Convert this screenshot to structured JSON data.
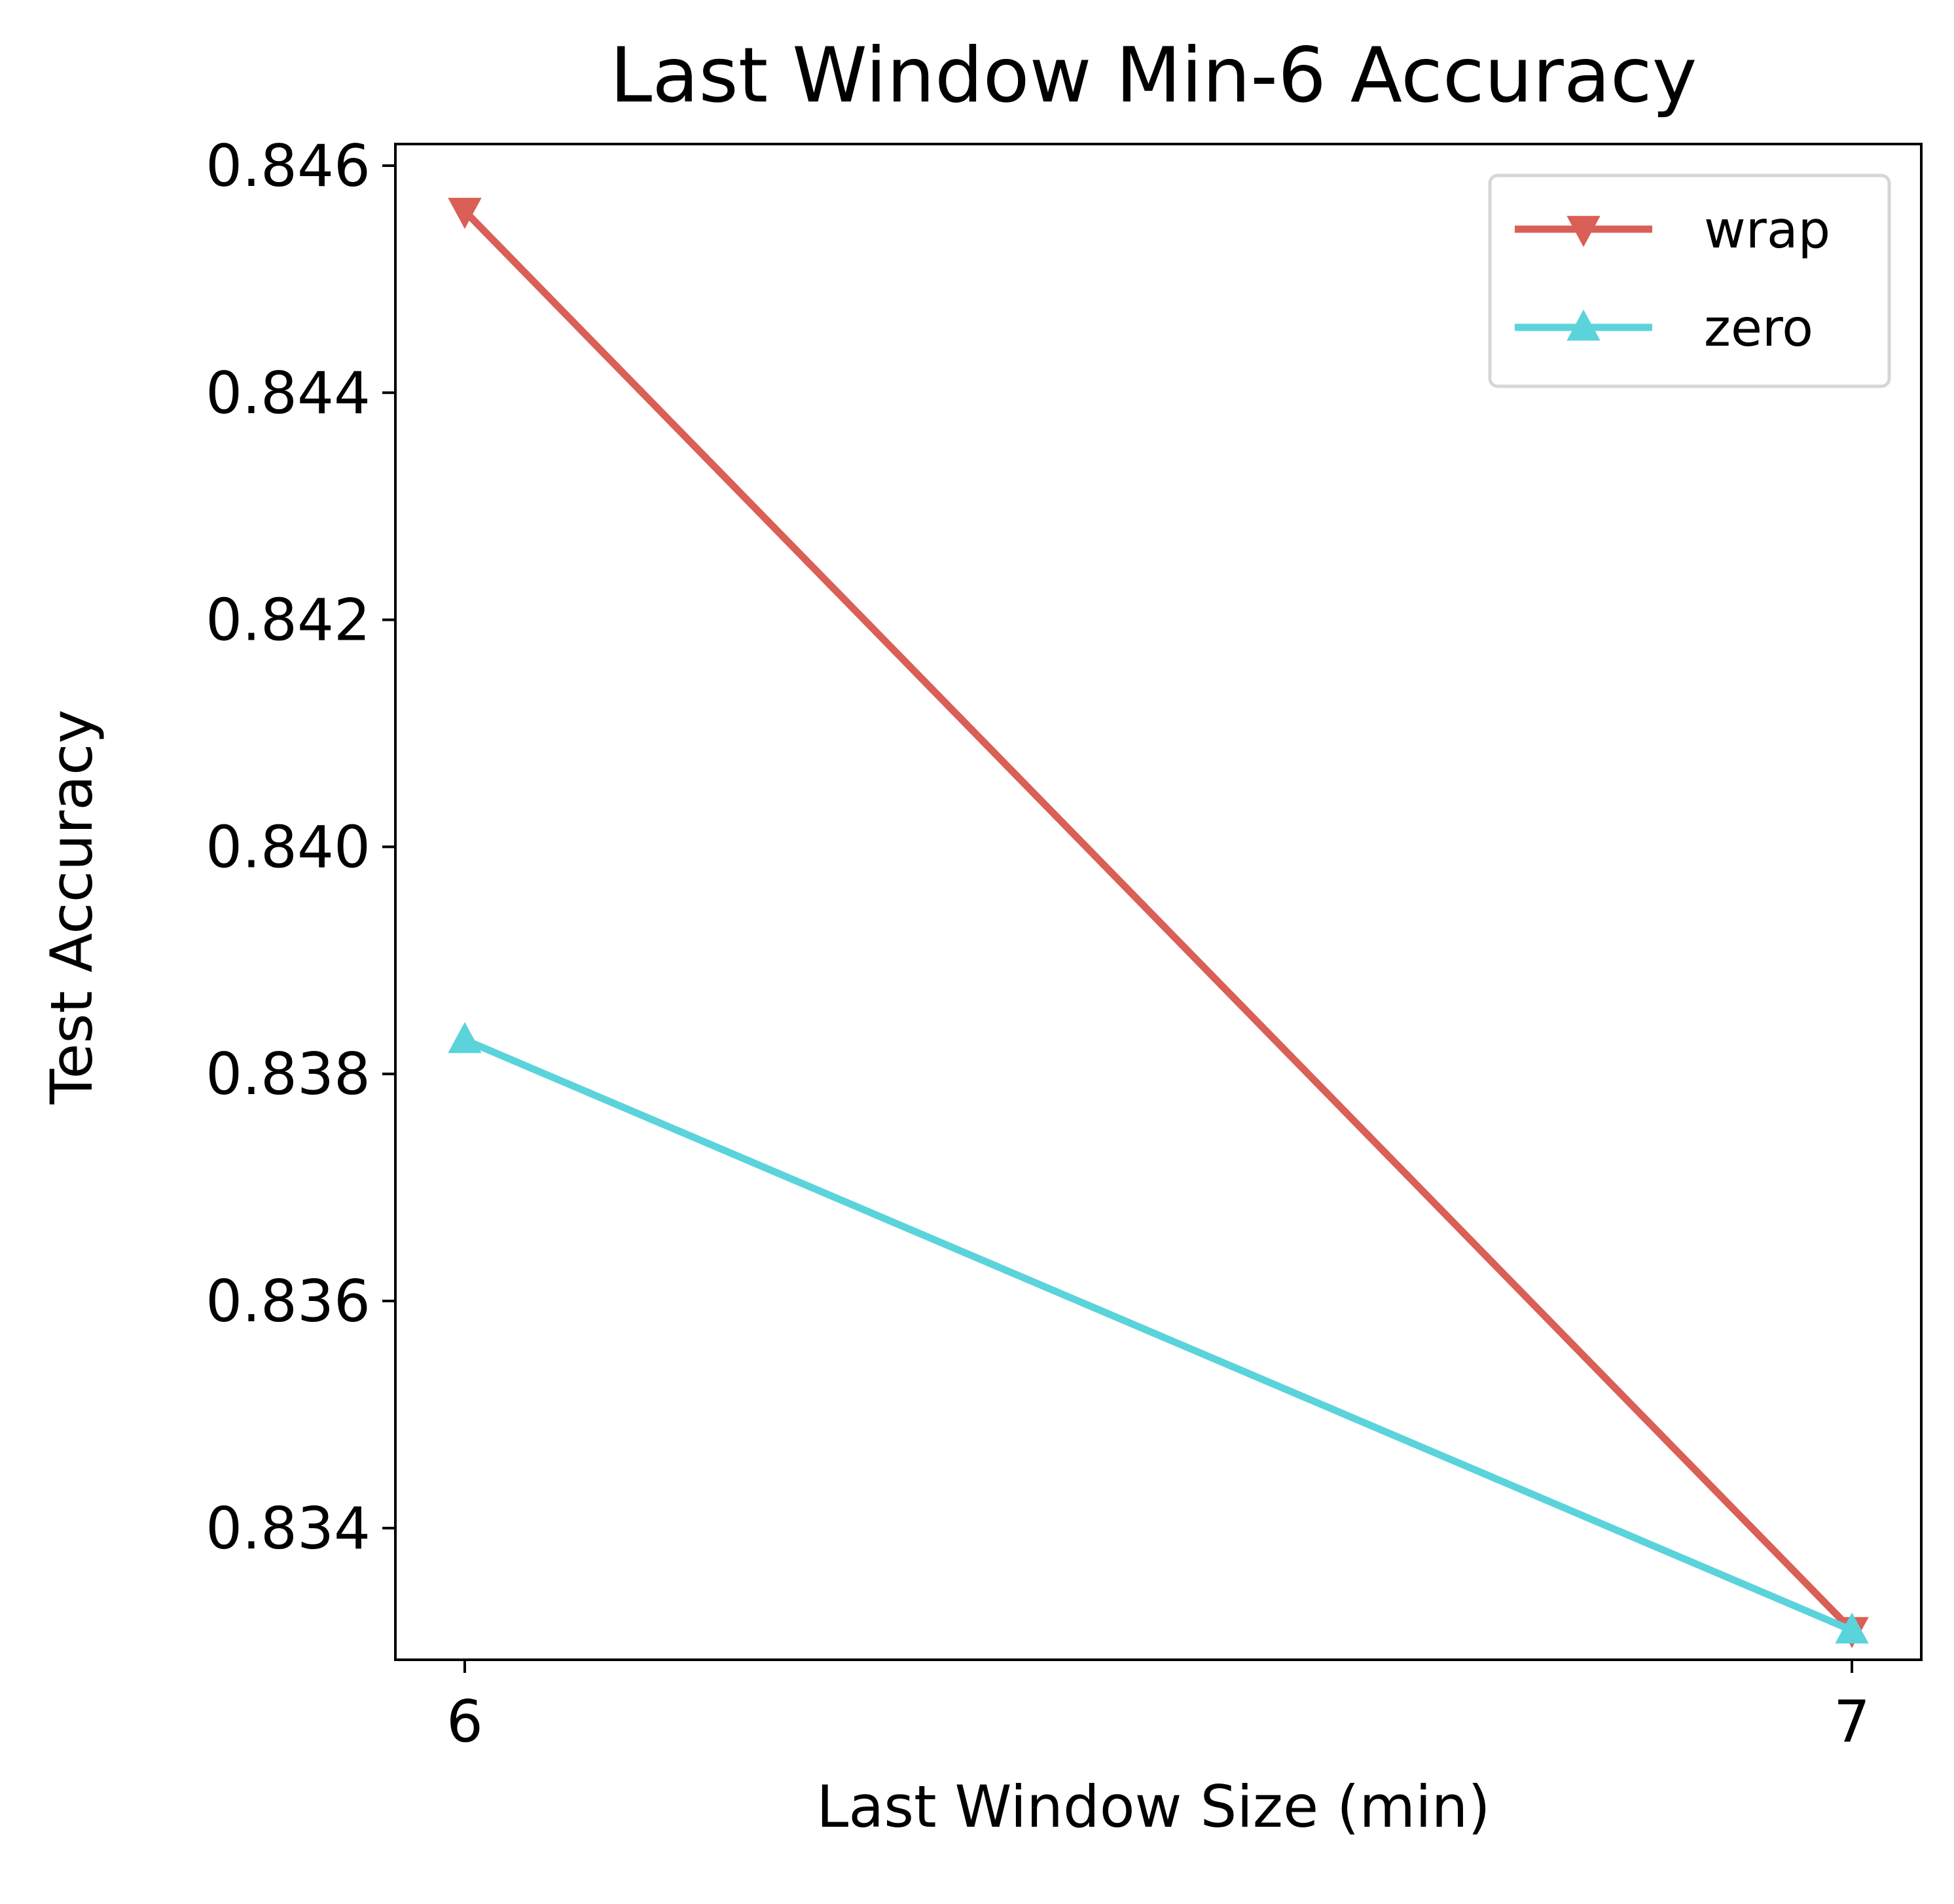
{
  "chart_data": {
    "type": "line",
    "title": "Last Window Min-6 Accuracy",
    "xlabel": "Last Window Size (min)",
    "ylabel": "Test Accuracy",
    "x": [
      6,
      7
    ],
    "x_ticks": [
      "6",
      "7"
    ],
    "y_ticks": [
      "0.834",
      "0.836",
      "0.838",
      "0.840",
      "0.842",
      "0.844",
      "0.846"
    ],
    "xlim": [
      5.95,
      7.05
    ],
    "ylim": [
      0.83284,
      0.84619
    ],
    "grid": false,
    "legend_position": "top-right",
    "series": [
      {
        "name": "wrap",
        "values": [
          0.8456,
          0.8331
        ],
        "color": "#d95f57",
        "marker": "triangle-down"
      },
      {
        "name": "zero",
        "values": [
          0.8383,
          0.8331
        ],
        "color": "#5bd3db",
        "marker": "triangle-up"
      }
    ]
  }
}
